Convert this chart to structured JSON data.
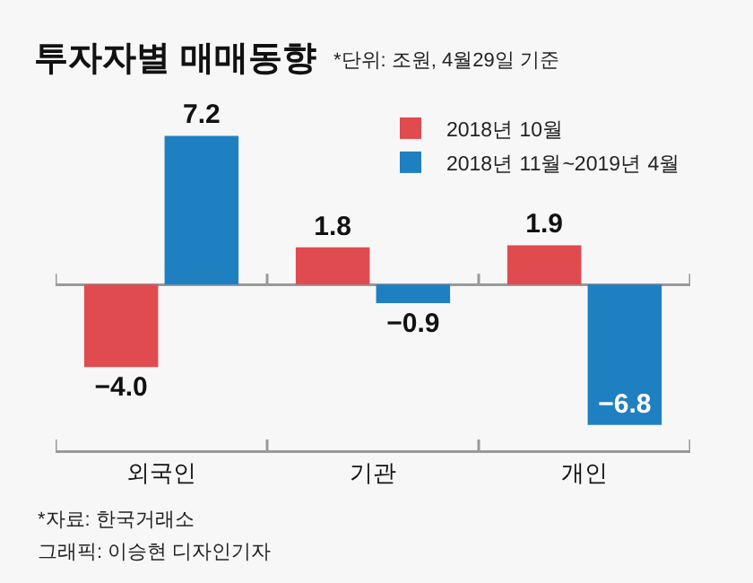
{
  "chart_data": {
    "type": "bar",
    "title": "투자자별 매매동향",
    "subtitle": "*단위: 조원, 4월29일 기준",
    "categories": [
      "외국인",
      "기관",
      "개인"
    ],
    "series": [
      {
        "name": "2018년 10월",
        "color": "#e04b4f",
        "values": [
          -4.0,
          1.8,
          1.9
        ],
        "value_labels": [
          "−4.0",
          "1.8",
          "1.9"
        ]
      },
      {
        "name": "2018년 11월~2019년 4월",
        "color": "#1f80c1",
        "values": [
          7.2,
          -0.9,
          -6.8
        ],
        "value_labels": [
          "7.2",
          "−0.9",
          "−6.8"
        ]
      }
    ],
    "tick_labels": "x",
    "legend": "top right",
    "annotations": [
      "*자료: 한국거래소",
      "그래픽: 이승현 디자인기자"
    ]
  }
}
